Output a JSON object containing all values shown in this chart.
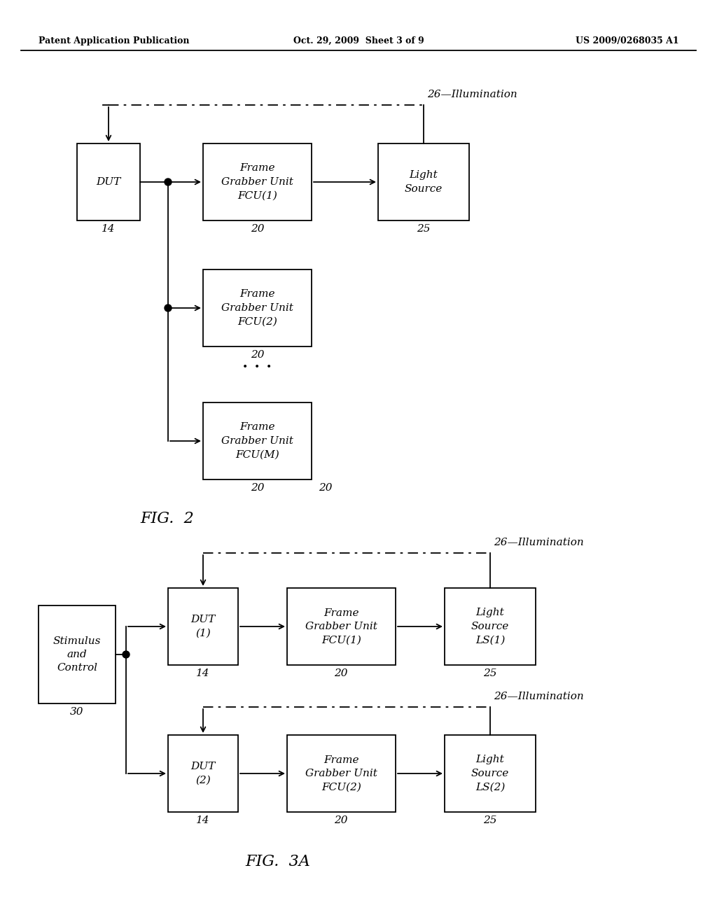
{
  "header_left": "Patent Application Publication",
  "header_mid": "Oct. 29, 2009  Sheet 3 of 9",
  "header_right": "US 2009/0268035 A1",
  "bg_color": "#ffffff",
  "line_color": "#000000"
}
